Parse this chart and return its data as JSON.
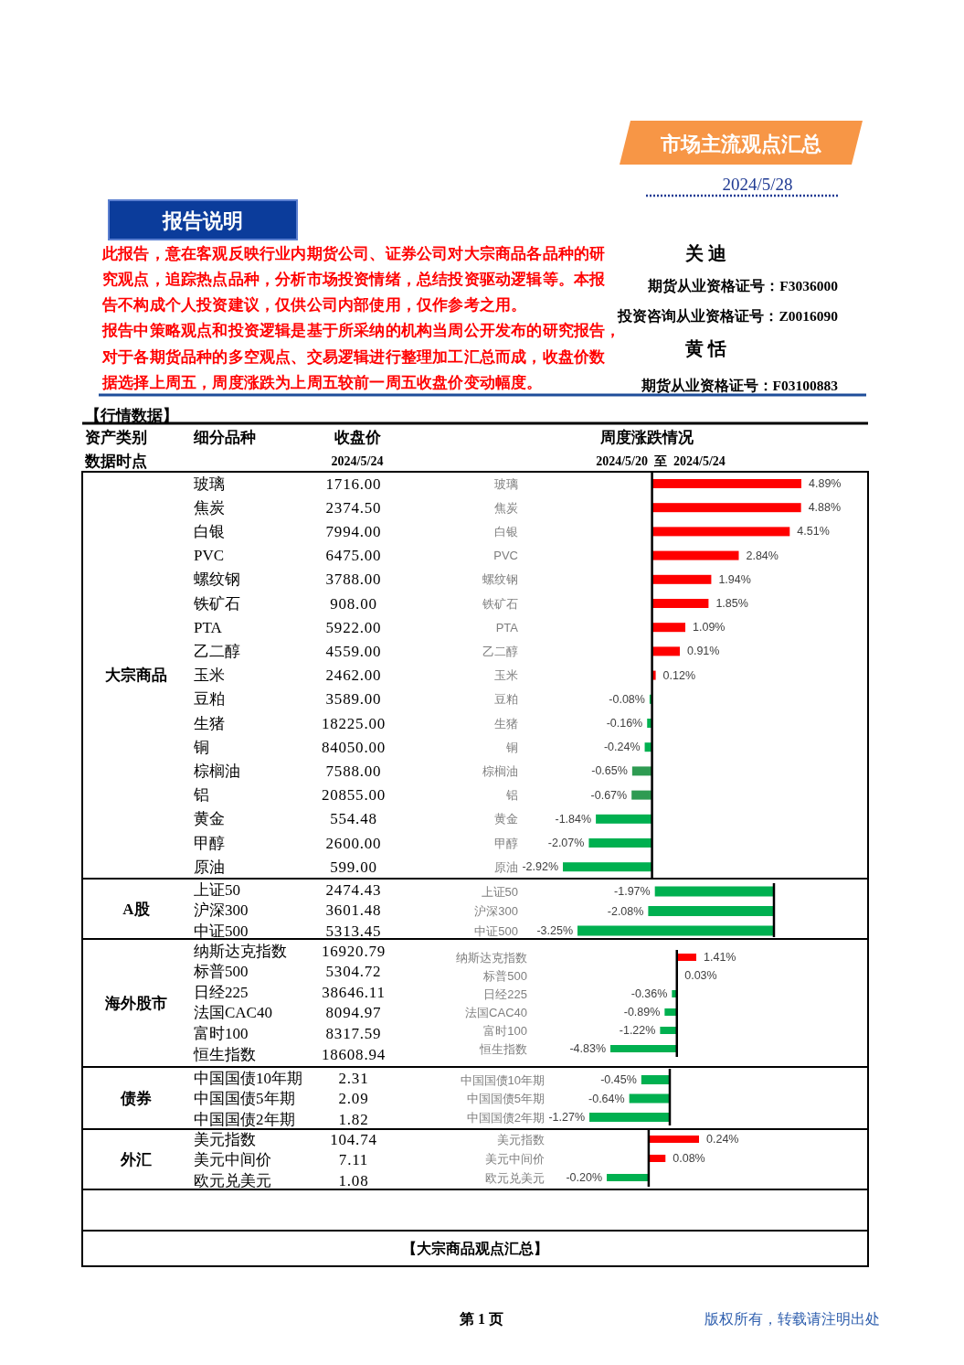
{
  "chart_data": [
    {
      "type": "other",
      "title": "市场主流观点汇总",
      "subtitle": "2024/5/28",
      "annotations": [
        "报告说明",
        "此报告，意在客观反映行业内期货公司、证券公司对大宗商品各品种的研究观点，追踪热点品种，分析市场投资情绪，总结投资驱动逻辑等。本报告不构成个人投资建议，仅供公司内部使用，仅作参考之用。",
        "报告中策略观点和投资逻辑是基于所采纳的机构当周公开发布的研究报告，对于各期货品种的多空观点、交易逻辑进行整理加工汇总而成，收盘价数据选择上周五，周度涨跌为上周五较前一周五收盘价变动幅度。",
        "关 迪",
        "期货从业资格证号：F3036000",
        "投资咨询从业资格证号：Z0016090",
        "黄 恬",
        "期货从业资格证号：F03100883"
      ]
    },
    {
      "type": "other",
      "title": "【行情数据】",
      "annotations": [
        "资产类别",
        "细分品种",
        "收盘价",
        "周度涨跌情况",
        "数据时点",
        "2024/5/24",
        "2024/5/20  至  2024/5/24"
      ]
    },
    {
      "type": "bar",
      "orientation": "horizontal",
      "title": "大宗商品",
      "tick_labels": "y",
      "categories": [
        "玻璃",
        "焦炭",
        "白银",
        "PVC",
        "螺纹钢",
        "铁矿石",
        "PTA",
        "乙二醇",
        "玉米",
        "豆粕",
        "生猪",
        "铜",
        "棕榈油",
        "铝",
        "黄金",
        "甲醇",
        "原油"
      ],
      "values": [
        4.89,
        4.88,
        4.51,
        2.84,
        1.94,
        1.85,
        1.09,
        0.91,
        0.12,
        -0.08,
        -0.16,
        -0.24,
        -0.65,
        -0.67,
        -1.84,
        -2.07,
        -2.92
      ],
      "colors": [
        "#ff0000",
        "#ff0000",
        "#ff0000",
        "#ff0000",
        "#ff0000",
        "#ff0000",
        "#ff0000",
        "#ff0000",
        "#ff0000",
        "#00b050",
        "#00b050",
        "#00b050",
        "#2e9b52",
        "#2e9b52",
        "#00b050",
        "#00b050",
        "#00b050"
      ],
      "value_labels": [
        "4.89%",
        "4.88%",
        "4.51%",
        "2.84%",
        "1.94%",
        "1.85%",
        "1.09%",
        "0.91%",
        "0.12%",
        "-0.08%",
        "-0.16%",
        "-0.24%",
        "-0.65%",
        "-0.67%",
        "-1.84%",
        "-2.07%",
        "-2.92%"
      ],
      "annotations": [
        "1716.00",
        "2374.50",
        "7994.00",
        "6475.00",
        "3788.00",
        "908.00",
        "5922.00",
        "4559.00",
        "2462.00",
        "3589.00",
        "18225.00",
        "84050.00",
        "7588.00",
        "20855.00",
        "554.48",
        "2600.00",
        "599.00"
      ]
    },
    {
      "type": "bar",
      "orientation": "horizontal",
      "title": "A股",
      "tick_labels": "y",
      "categories": [
        "上证50",
        "沪深300",
        "中证500"
      ],
      "values": [
        -1.97,
        -2.08,
        -3.25
      ],
      "colors": [
        "#00b050",
        "#00b050",
        "#00b050"
      ],
      "value_labels": [
        "-1.97%",
        "-2.08%",
        "-3.25%"
      ],
      "annotations": [
        "2474.43",
        "3601.48",
        "5313.45"
      ]
    },
    {
      "type": "bar",
      "orientation": "horizontal",
      "title": "海外股市",
      "tick_labels": "y",
      "categories": [
        "纳斯达克指数",
        "标普500",
        "日经225",
        "法国CAC40",
        "富时100",
        "恒生指数"
      ],
      "values": [
        1.41,
        0.03,
        -0.36,
        -0.89,
        -1.22,
        -4.83
      ],
      "colors": [
        "#ff0000",
        "#ff0000",
        "#00b050",
        "#00b050",
        "#00b050",
        "#00b050"
      ],
      "value_labels": [
        "1.41%",
        "0.03%",
        "-0.36%",
        "-0.89%",
        "-1.22%",
        "-4.83%"
      ],
      "annotations": [
        "16920.79",
        "5304.72",
        "38646.11",
        "8094.97",
        "8317.59",
        "18608.94"
      ]
    },
    {
      "type": "bar",
      "orientation": "horizontal",
      "title": "债券",
      "tick_labels": "y",
      "categories": [
        "中国国债10年期",
        "中国国债5年期",
        "中国国债2年期"
      ],
      "values": [
        -0.45,
        -0.64,
        -1.27
      ],
      "colors": [
        "#00b050",
        "#00b050",
        "#00b050"
      ],
      "value_labels": [
        "-0.45%",
        "-0.64%",
        "-1.27%"
      ],
      "annotations": [
        "2.31",
        "2.09",
        "1.82"
      ]
    },
    {
      "type": "bar",
      "orientation": "horizontal",
      "title": "外汇",
      "tick_labels": "y",
      "categories": [
        "美元指数",
        "美元中间价",
        "欧元兑美元"
      ],
      "values": [
        0.24,
        0.08,
        -0.2
      ],
      "colors": [
        "#ff0000",
        "#ff0000",
        "#00b050"
      ],
      "value_labels": [
        "0.24%",
        "0.08%",
        "-0.20%"
      ],
      "annotations": [
        "104.74",
        "7.11",
        "1.08"
      ]
    },
    {
      "type": "other",
      "title": "【大宗商品观点汇总】",
      "annotations": [
        "第 1 页",
        "版权所有，转载请注明出处"
      ]
    }
  ]
}
